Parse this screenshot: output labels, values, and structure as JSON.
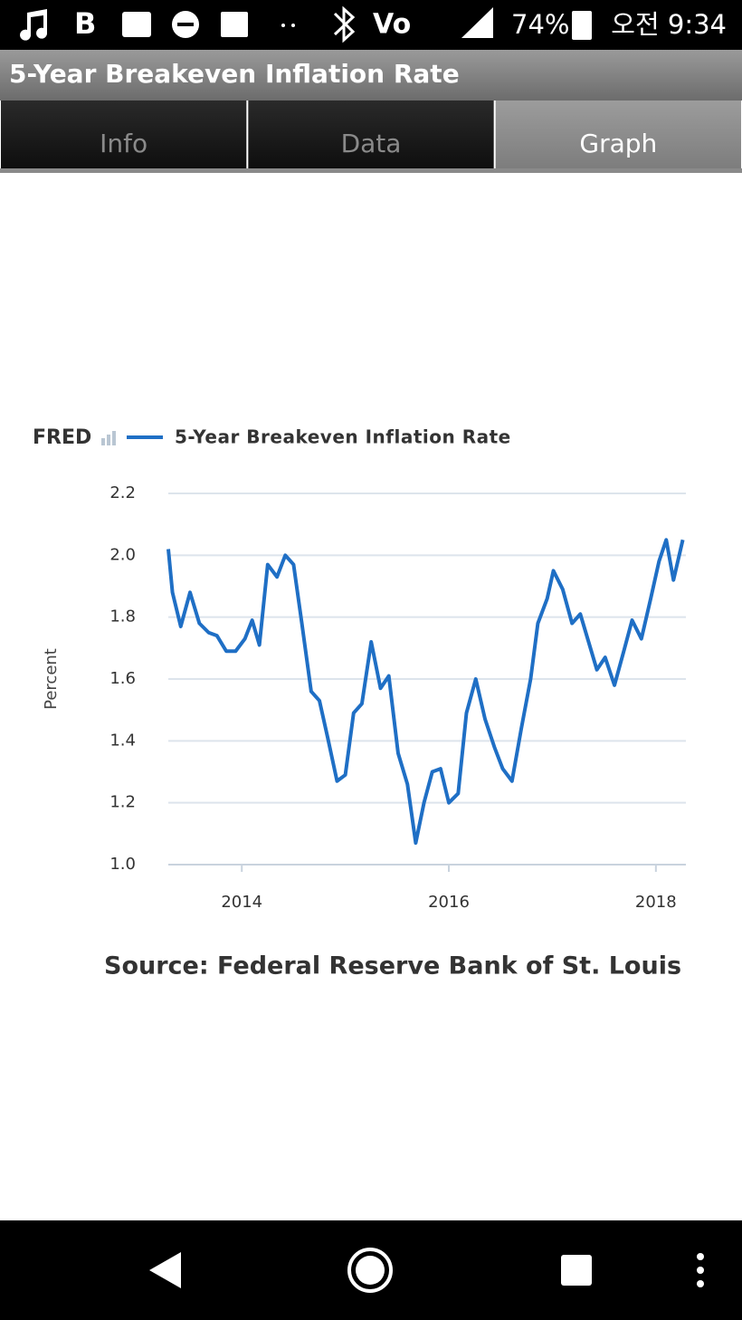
{
  "status_bar": {
    "battery": "74%",
    "time": "오전 9:34"
  },
  "app_bar": {
    "title": "5-Year Breakeven Inflation Rate"
  },
  "tabs": [
    "Info",
    "Data",
    "Graph"
  ],
  "selected_tab": 2,
  "chart_data": {
    "type": "line",
    "logo": "FRED",
    "y_label": "Percent",
    "x": [
      2013.29,
      2013.33,
      2013.41,
      2013.5,
      2013.59,
      2013.68,
      2013.76,
      2013.85,
      2013.94,
      2014.03,
      2014.1,
      2014.17,
      2014.25,
      2014.34,
      2014.42,
      2014.5,
      2014.58,
      2014.67,
      2014.75,
      2014.83,
      2014.92,
      2015.0,
      2015.08,
      2015.16,
      2015.25,
      2015.34,
      2015.42,
      2015.51,
      2015.6,
      2015.68,
      2015.76,
      2015.84,
      2015.92,
      2016.0,
      2016.09,
      2016.17,
      2016.26,
      2016.35,
      2016.44,
      2016.52,
      2016.61,
      2016.7,
      2016.79,
      2016.86,
      2016.95,
      2017.01,
      2017.1,
      2017.19,
      2017.27,
      2017.35,
      2017.43,
      2017.51,
      2017.6,
      2017.69,
      2017.77,
      2017.86,
      2017.95,
      2018.03,
      2018.1,
      2018.17,
      2018.26
    ],
    "series": [
      {
        "name": "5-Year Breakeven Inflation Rate",
        "color": "#1f6fc5",
        "values": [
          2.02,
          1.88,
          1.77,
          1.88,
          1.78,
          1.75,
          1.74,
          1.69,
          1.69,
          1.73,
          1.79,
          1.71,
          1.97,
          1.93,
          2.0,
          1.97,
          1.78,
          1.56,
          1.53,
          1.41,
          1.27,
          1.29,
          1.49,
          1.52,
          1.72,
          1.57,
          1.61,
          1.36,
          1.26,
          1.07,
          1.2,
          1.3,
          1.31,
          1.2,
          1.23,
          1.49,
          1.6,
          1.47,
          1.38,
          1.31,
          1.27,
          1.44,
          1.6,
          1.78,
          1.86,
          1.95,
          1.89,
          1.78,
          1.81,
          1.72,
          1.63,
          1.67,
          1.58,
          1.69,
          1.79,
          1.73,
          1.86,
          1.98,
          2.05,
          1.92,
          2.05
        ]
      }
    ],
    "xlim": [
      2013.29,
      2018.29
    ],
    "xticks": [
      2014,
      2016,
      2018
    ],
    "ylim": [
      1.0,
      2.2
    ],
    "yticks": [
      {
        "value": 1.0,
        "label": "1.0"
      },
      1.2,
      1.4,
      1.6,
      1.8,
      {
        "value": 2.0,
        "label": "2.0"
      },
      2.2
    ],
    "grid": true
  },
  "source": "Source: Federal Reserve Bank of St. Louis"
}
